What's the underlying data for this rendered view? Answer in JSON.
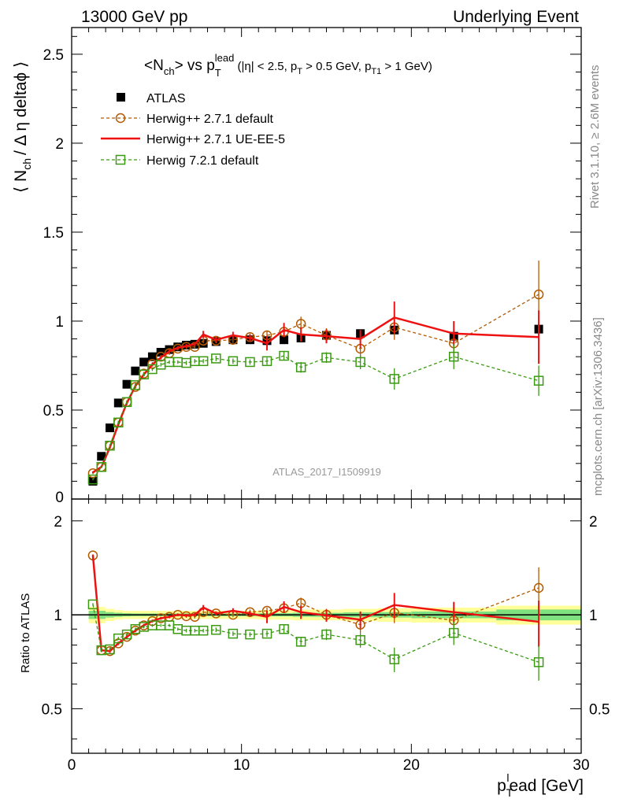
{
  "header": {
    "left": "13000 GeV pp",
    "right": "Underlying Event"
  },
  "side_labels": {
    "rivet": "Rivet 3.1.10, ≥ 2.6M events",
    "mcplots": "mcplots.cern.ch [arXiv:1306.3436]"
  },
  "watermark": "ATLAS_2017_I1509919",
  "colors": {
    "atlas": "#000000",
    "herwigpp_default": "#b35a00",
    "herwigpp_ueee5": "#ee1111",
    "herwig721": "#3a9a12",
    "band_inner": "#7fe07f",
    "band_outer": "#ffff99"
  },
  "chart_data": {
    "type": "scatter",
    "xlabel_main": "p",
    "xlabel_sub": "T",
    "xlabel_sup": "l",
    "xlabel_rest": "ead [GeV]",
    "xlim": [
      0,
      30
    ],
    "x_ticks": [
      "0",
      "10",
      "20",
      "30"
    ],
    "main": {
      "title_main": "<N",
      "title_sub": "ch",
      "title_mid": "> vs p",
      "title_sub2": "T",
      "title_sup2": "lead",
      "title_cuts": " (|η| < 2.5, p",
      "title_sub3": "T",
      "title_cuts2": " > 0.5 GeV, p",
      "title_sub4": "T1",
      "title_cuts3": " > 1 GeV)",
      "ylabel": "⟨ N",
      "ylabel_sub": "ch",
      "ylabel_rest": "/ Δ η deltaϕ ⟩",
      "ylim": [
        0,
        2.65
      ],
      "y_ticks": [
        "0.5",
        "1",
        "1.5",
        "2",
        "2.5"
      ],
      "y_tick_zero": "0",
      "legend_position": "top-left",
      "series": [
        {
          "name": "ATLAS",
          "style": "data",
          "x": [
            1.25,
            1.75,
            2.25,
            2.75,
            3.25,
            3.75,
            4.25,
            4.75,
            5.25,
            5.75,
            6.25,
            6.75,
            7.25,
            7.75,
            8.5,
            9.5,
            10.5,
            11.5,
            12.5,
            13.5,
            15.0,
            17.0,
            19.0,
            22.5,
            27.5
          ],
          "y": [
            0.1,
            0.24,
            0.4,
            0.54,
            0.645,
            0.72,
            0.77,
            0.8,
            0.825,
            0.84,
            0.855,
            0.865,
            0.87,
            0.875,
            0.885,
            0.895,
            0.895,
            0.89,
            0.895,
            0.905,
            0.92,
            0.93,
            0.95,
            0.915,
            0.955
          ],
          "err": [
            0.005,
            0.005,
            0.005,
            0.005,
            0.005,
            0.005,
            0.005,
            0.005,
            0.005,
            0.005,
            0.005,
            0.005,
            0.005,
            0.005,
            0.006,
            0.006,
            0.007,
            0.008,
            0.009,
            0.01,
            0.012,
            0.015,
            0.02,
            0.025,
            0.04
          ]
        },
        {
          "name": "Herwig++ 2.7.1 default",
          "style": "circle-dashed",
          "x": [
            1.25,
            1.75,
            2.25,
            2.75,
            3.25,
            3.75,
            4.25,
            4.75,
            5.25,
            5.75,
            6.25,
            6.75,
            7.25,
            7.75,
            8.5,
            9.5,
            10.5,
            11.5,
            12.5,
            13.5,
            15.0,
            17.0,
            19.0,
            22.5,
            27.5
          ],
          "y": [
            0.145,
            0.18,
            0.3,
            0.43,
            0.545,
            0.63,
            0.705,
            0.76,
            0.8,
            0.82,
            0.845,
            0.855,
            0.855,
            0.89,
            0.89,
            0.895,
            0.91,
            0.92,
            0.94,
            0.985,
            0.92,
            0.845,
            0.965,
            0.875,
            1.15
          ],
          "err": [
            0.005,
            0.005,
            0.008,
            0.01,
            0.01,
            0.01,
            0.01,
            0.01,
            0.01,
            0.01,
            0.01,
            0.012,
            0.012,
            0.015,
            0.015,
            0.018,
            0.02,
            0.025,
            0.03,
            0.04,
            0.04,
            0.05,
            0.07,
            0.08,
            0.19
          ]
        },
        {
          "name": "Herwig++ 2.7.1 UE-EE-5",
          "style": "line-solid",
          "x": [
            1.25,
            1.75,
            2.25,
            2.75,
            3.25,
            3.75,
            4.25,
            4.75,
            5.25,
            5.75,
            6.25,
            6.75,
            7.25,
            7.75,
            8.5,
            9.5,
            10.5,
            11.5,
            12.5,
            13.5,
            15.0,
            17.0,
            19.0,
            22.5,
            27.5
          ],
          "y": [
            0.15,
            0.18,
            0.29,
            0.42,
            0.54,
            0.635,
            0.7,
            0.755,
            0.795,
            0.83,
            0.85,
            0.86,
            0.87,
            0.925,
            0.895,
            0.92,
            0.905,
            0.875,
            0.95,
            0.925,
            0.915,
            0.9,
            1.02,
            0.93,
            0.91
          ],
          "err": [
            0.005,
            0.005,
            0.008,
            0.01,
            0.01,
            0.01,
            0.01,
            0.01,
            0.01,
            0.01,
            0.01,
            0.012,
            0.012,
            0.02,
            0.015,
            0.02,
            0.02,
            0.04,
            0.04,
            0.04,
            0.04,
            0.05,
            0.09,
            0.07,
            0.15
          ]
        },
        {
          "name": "Herwig 7.2.1 default",
          "style": "square-dashed",
          "x": [
            1.25,
            1.75,
            2.25,
            2.75,
            3.25,
            3.75,
            4.25,
            4.75,
            5.25,
            5.75,
            6.25,
            6.75,
            7.25,
            7.75,
            8.5,
            9.5,
            10.5,
            11.5,
            12.5,
            13.5,
            15.0,
            17.0,
            19.0,
            22.5,
            27.5
          ],
          "y": [
            0.11,
            0.18,
            0.3,
            0.43,
            0.545,
            0.64,
            0.7,
            0.73,
            0.755,
            0.77,
            0.77,
            0.765,
            0.775,
            0.775,
            0.79,
            0.775,
            0.77,
            0.775,
            0.805,
            0.74,
            0.795,
            0.77,
            0.675,
            0.8,
            0.665
          ],
          "err": [
            0.005,
            0.005,
            0.008,
            0.01,
            0.01,
            0.01,
            0.01,
            0.01,
            0.01,
            0.01,
            0.01,
            0.012,
            0.012,
            0.012,
            0.015,
            0.015,
            0.015,
            0.02,
            0.025,
            0.03,
            0.03,
            0.04,
            0.06,
            0.07,
            0.085
          ]
        }
      ]
    },
    "ratio": {
      "ylabel": "Ratio to ATLAS",
      "ylim": [
        0.36,
        2.35
      ],
      "log_y": true,
      "y_ticks": [
        "0.5",
        "1",
        "2"
      ],
      "band": {
        "x": [
          1.0,
          1.5,
          2.0,
          2.5,
          3.0,
          3.5,
          4.0,
          4.5,
          5.0,
          5.5,
          6.0,
          6.5,
          7.0,
          7.5,
          8.0,
          9.0,
          10.0,
          11.0,
          12.0,
          13.0,
          14.0,
          16.0,
          18.0,
          20.0,
          25.0,
          30.0
        ],
        "inner": [
          0.03,
          0.03,
          0.02,
          0.015,
          0.012,
          0.01,
          0.01,
          0.01,
          0.01,
          0.01,
          0.01,
          0.01,
          0.01,
          0.01,
          0.01,
          0.01,
          0.01,
          0.012,
          0.012,
          0.015,
          0.015,
          0.018,
          0.02,
          0.025,
          0.04
        ],
        "outer": [
          0.06,
          0.06,
          0.045,
          0.035,
          0.03,
          0.03,
          0.03,
          0.03,
          0.03,
          0.03,
          0.03,
          0.03,
          0.03,
          0.03,
          0.03,
          0.03,
          0.03,
          0.035,
          0.035,
          0.04,
          0.04,
          0.045,
          0.05,
          0.055,
          0.07
        ]
      },
      "series": [
        {
          "name": "Herwig++ 2.7.1 default",
          "style": "circle-dashed",
          "x": [
            1.25,
            1.75,
            2.25,
            2.75,
            3.25,
            3.75,
            4.25,
            4.75,
            5.25,
            5.75,
            6.25,
            6.75,
            7.25,
            7.75,
            8.5,
            9.5,
            10.5,
            11.5,
            12.5,
            13.5,
            15.0,
            17.0,
            19.0,
            22.5,
            27.5
          ],
          "y": [
            1.55,
            0.77,
            0.765,
            0.81,
            0.85,
            0.89,
            0.925,
            0.955,
            0.975,
            0.985,
            1.0,
            0.99,
            0.985,
            1.02,
            1.01,
            1.0,
            1.02,
            1.03,
            1.05,
            1.09,
            1.0,
            0.93,
            1.015,
            0.96,
            1.22
          ],
          "err": [
            0.01,
            0.01,
            0.01,
            0.01,
            0.01,
            0.01,
            0.01,
            0.01,
            0.01,
            0.01,
            0.01,
            0.012,
            0.012,
            0.015,
            0.015,
            0.018,
            0.02,
            0.025,
            0.03,
            0.045,
            0.045,
            0.055,
            0.075,
            0.09,
            0.2
          ]
        },
        {
          "name": "Herwig++ 2.7.1 UE-EE-5",
          "style": "line-solid",
          "x": [
            1.25,
            1.75,
            2.25,
            2.75,
            3.25,
            3.75,
            4.25,
            4.75,
            5.25,
            5.75,
            6.25,
            6.75,
            7.25,
            7.75,
            8.5,
            9.5,
            10.5,
            11.5,
            12.5,
            13.5,
            15.0,
            17.0,
            19.0,
            22.5,
            27.5
          ],
          "y": [
            1.55,
            0.77,
            0.765,
            0.81,
            0.85,
            0.89,
            0.925,
            0.955,
            0.975,
            0.985,
            1.0,
            0.995,
            1.0,
            1.055,
            1.01,
            1.03,
            1.01,
            0.985,
            1.06,
            1.02,
            0.995,
            0.965,
            1.075,
            1.02,
            0.95
          ],
          "err": [
            0.01,
            0.01,
            0.01,
            0.01,
            0.01,
            0.01,
            0.01,
            0.01,
            0.01,
            0.01,
            0.01,
            0.012,
            0.012,
            0.02,
            0.015,
            0.02,
            0.02,
            0.045,
            0.045,
            0.05,
            0.045,
            0.06,
            0.1,
            0.08,
            0.16
          ]
        },
        {
          "name": "Herwig 7.2.1 default",
          "style": "square-dashed",
          "x": [
            1.25,
            1.75,
            2.25,
            2.75,
            3.25,
            3.75,
            4.25,
            4.75,
            5.25,
            5.75,
            6.25,
            6.75,
            7.25,
            7.75,
            8.5,
            9.5,
            10.5,
            11.5,
            12.5,
            13.5,
            15.0,
            17.0,
            19.0,
            22.5,
            27.5
          ],
          "y": [
            1.08,
            0.77,
            0.775,
            0.84,
            0.865,
            0.9,
            0.915,
            0.925,
            0.925,
            0.925,
            0.9,
            0.89,
            0.89,
            0.89,
            0.895,
            0.87,
            0.865,
            0.87,
            0.9,
            0.82,
            0.865,
            0.83,
            0.72,
            0.875,
            0.705
          ],
          "err": [
            0.01,
            0.01,
            0.01,
            0.01,
            0.01,
            0.01,
            0.01,
            0.01,
            0.01,
            0.01,
            0.01,
            0.012,
            0.012,
            0.012,
            0.015,
            0.015,
            0.015,
            0.02,
            0.025,
            0.03,
            0.035,
            0.045,
            0.065,
            0.075,
            0.09
          ]
        }
      ]
    }
  }
}
